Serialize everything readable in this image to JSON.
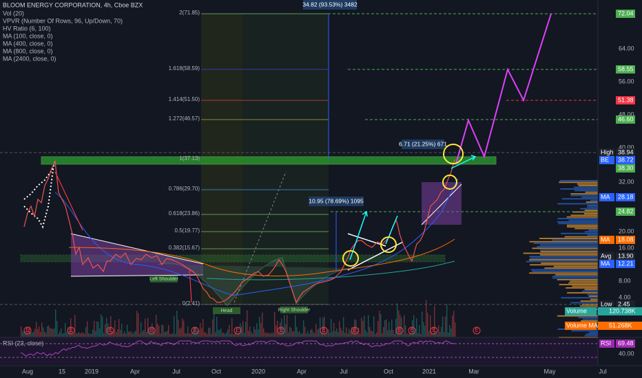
{
  "header": {
    "title": "BLOOM ENERGY CORPORATION, 4h, Cboe BZX",
    "indicators": [
      "Vol (20)",
      "VPVR (Number Of Rows, 96, Up/Down, 70)",
      "HV Ratio (6, 100)",
      "MA (100, close, 0)",
      "MA (400, close, 0)",
      "MA (800, close, 0)",
      "MA (2400, close, 0)"
    ]
  },
  "price_axis": [
    "64.00",
    "56.00",
    "48.00",
    "40.00",
    "32.00",
    "20.00",
    "16.00",
    "8.00",
    "4.00"
  ],
  "rsi_axis": [
    "40.00"
  ],
  "badges": [
    {
      "label": "72.04"
    },
    {
      "label": "58.55"
    },
    {
      "label": "51.38"
    },
    {
      "label": "46.60"
    },
    {
      "name": "High",
      "label": "38.94"
    },
    {
      "name": "BE",
      "label": "38.72"
    },
    {
      "label": "38.30"
    },
    {
      "name": "MA",
      "label": "28.18"
    },
    {
      "label": "24.82"
    },
    {
      "name": "MA",
      "label": "18.08"
    },
    {
      "name": "Avg",
      "label": "13.90"
    },
    {
      "name": "MA",
      "label": "12.21"
    },
    {
      "name": "Low",
      "label": "2.45"
    },
    {
      "name": "Volume",
      "label": "120.738K"
    },
    {
      "name": "Volume MA",
      "label": "51.268K"
    },
    {
      "name": "RSI",
      "label": "69.48"
    }
  ],
  "fib_levels": [
    "2(71.85)",
    "1.618(58.59)",
    "1.414(51.50)",
    "1.272(46.57)",
    "1(37.13)",
    "0.786(29.70)",
    "0.618(23.86)",
    "0.5(19.77)",
    "0.382(15.67)",
    "0(2.41)"
  ],
  "measures": [
    "34.82 (93.53%) 3482",
    "6.71 (21.25%) 671",
    "10.95 (78.69%) 1095"
  ],
  "patterns": [
    "Left Shoulder",
    "Head",
    "Right Shoulder"
  ],
  "earnings_marker": "E",
  "rsi_label": "RSI (23, close)",
  "time_axis": [
    "Aug",
    "15",
    "2019",
    "Apr",
    "Jul",
    "Oct",
    "2020",
    "Apr",
    "Jul",
    "Oct",
    "2021",
    "Mar",
    "May",
    "Jul"
  ]
}
